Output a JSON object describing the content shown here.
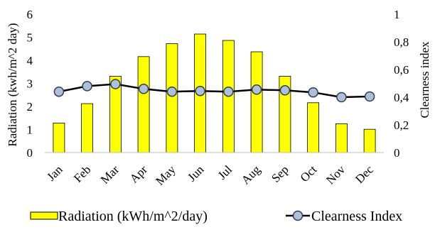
{
  "chart_data": {
    "type": "bar",
    "categories": [
      "Jan",
      "Feb",
      "Mar",
      "Apr",
      "May",
      "Jun",
      "Jul",
      "Aug",
      "Sep",
      "Oct",
      "Nov",
      "Dec"
    ],
    "series": [
      {
        "name": "Radiation (kWh/m^2/day)",
        "type": "bar",
        "axis": "left",
        "color": "#ffff00",
        "values": [
          1.28,
          2.12,
          3.31,
          4.16,
          4.72,
          5.14,
          4.86,
          4.37,
          3.31,
          2.16,
          1.25,
          1.01
        ]
      },
      {
        "name": "Clearness Index",
        "type": "line",
        "axis": "right",
        "color": "#000000",
        "marker_fill": "#aec0d8",
        "values": [
          0.44,
          0.48,
          0.495,
          0.46,
          0.44,
          0.445,
          0.44,
          0.455,
          0.45,
          0.435,
          0.4,
          0.405
        ]
      }
    ],
    "ylabel": "Radiation (kwh/m^2 day)",
    "y2label": "Clearness index",
    "ylim": [
      0,
      6
    ],
    "y2lim": [
      0,
      1
    ],
    "yticks": [
      "0",
      "1",
      "2",
      "3",
      "4",
      "5",
      "6"
    ],
    "y2ticks": [
      "0",
      "0,2",
      "0,4",
      "0,6",
      "0,8",
      "1"
    ],
    "grid": false,
    "legend_position": "bottom"
  }
}
